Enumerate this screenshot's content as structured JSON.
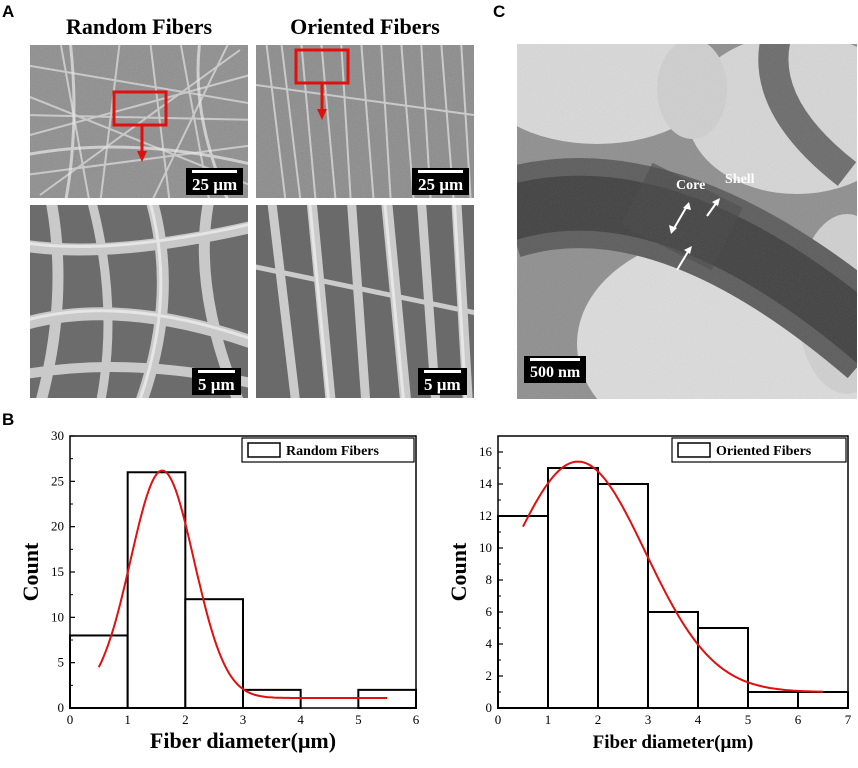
{
  "panels": {
    "a": {
      "letter": "A",
      "titles": {
        "random": "Random Fibers",
        "oriented": "Oriented Fibers"
      },
      "scale_bars": {
        "low_mag": "25 µm",
        "high_mag": "5 µm"
      }
    },
    "c": {
      "letter": "C",
      "scale_bar": "500 nm",
      "labels": {
        "core": "Core",
        "shell": "Shell"
      }
    },
    "b": {
      "letter": "B"
    }
  },
  "chart_data": [
    {
      "type": "bar",
      "title": "",
      "xlabel": "Fiber diameter(μm)",
      "ylabel": "Count",
      "legend": "Random Fibers",
      "legend_position": "top-right",
      "bin_edges": [
        0,
        1,
        2,
        3,
        4,
        5,
        6
      ],
      "values": [
        8,
        26,
        12,
        2,
        0,
        2
      ],
      "xlim": [
        0,
        6
      ],
      "ylim": [
        0,
        30
      ],
      "xticks": [
        0,
        1,
        2,
        3,
        4,
        5,
        6
      ],
      "yticks": [
        0,
        5,
        10,
        15,
        20,
        25,
        30
      ],
      "fit": {
        "type": "gaussian",
        "peak_x": 1.6,
        "peak_y": 26.2,
        "sigma": 0.55,
        "baseline": 1.1,
        "x_range": [
          0.5,
          5.5
        ],
        "color": "#e0100f"
      }
    },
    {
      "type": "bar",
      "title": "",
      "xlabel": "Fiber diameter(μm)",
      "ylabel": "Count",
      "legend": "Oriented Fibers",
      "legend_position": "top-right",
      "bin_edges": [
        0,
        1,
        2,
        3,
        4,
        5,
        6,
        7
      ],
      "values": [
        12,
        15,
        14,
        6,
        5,
        1,
        1
      ],
      "xlim": [
        0,
        7
      ],
      "ylim": [
        0,
        17
      ],
      "xticks": [
        0,
        1,
        2,
        3,
        4,
        5,
        6,
        7
      ],
      "yticks": [
        0,
        2,
        4,
        6,
        8,
        10,
        12,
        14,
        16
      ],
      "fit": {
        "type": "gaussian",
        "peak_x": 1.6,
        "peak_y": 15.4,
        "sigma": 1.35,
        "baseline": 1.0,
        "x_range": [
          0.5,
          6.5
        ],
        "color": "#e0100f"
      }
    }
  ]
}
